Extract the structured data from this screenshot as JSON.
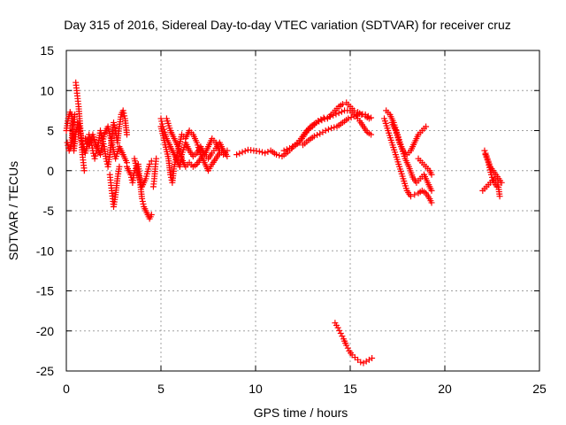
{
  "chart_data": {
    "type": "scatter",
    "title": "Day 315 of 2016, Sidereal Day-to-day VTEC variation (SDTVAR) for receiver cruz",
    "xlabel": "GPS time / hours",
    "ylabel": "SDTVAR / TECUs",
    "xlim": [
      0,
      25
    ],
    "ylim": [
      -25,
      15
    ],
    "xticks": [
      "0",
      "5",
      "10",
      "15",
      "20",
      "25"
    ],
    "yticks": [
      "15",
      "10",
      "5",
      "0",
      "-5",
      "-10",
      "-15",
      "-20",
      "-25"
    ],
    "grid": true,
    "marker": "+",
    "color": "#ff0000",
    "series": [
      {
        "name": "SDTVAR",
        "segments": [
          [
            [
              0.0,
              5.0
            ],
            [
              0.1,
              6.5
            ],
            [
              0.2,
              7.3
            ],
            [
              0.3,
              6.8
            ],
            [
              0.35,
              4.0
            ],
            [
              0.4,
              2.5
            ],
            [
              0.5,
              4.5
            ],
            [
              0.6,
              6.0
            ],
            [
              0.7,
              5.2
            ],
            [
              0.8,
              4.0
            ],
            [
              0.9,
              3.0
            ],
            [
              1.0,
              2.2
            ],
            [
              1.1,
              3.0
            ],
            [
              1.2,
              4.5
            ],
            [
              1.3,
              3.8
            ],
            [
              1.4,
              2.5
            ],
            [
              1.5,
              1.5
            ],
            [
              1.6,
              2.5
            ],
            [
              1.7,
              3.5
            ],
            [
              1.8,
              5.0
            ],
            [
              1.9,
              4.0
            ],
            [
              2.0,
              3.0
            ],
            [
              2.1,
              1.5
            ],
            [
              2.2,
              0.5
            ],
            [
              2.3,
              2.0
            ],
            [
              2.4,
              4.0
            ],
            [
              2.5,
              6.0
            ],
            [
              2.6,
              5.0
            ],
            [
              2.7,
              3.5
            ],
            [
              2.8,
              5.5
            ],
            [
              2.9,
              7.0
            ],
            [
              3.0,
              7.5
            ],
            [
              3.1,
              6.5
            ],
            [
              3.2,
              4.5
            ]
          ],
          [
            [
              0.05,
              3.5
            ],
            [
              0.15,
              2.5
            ],
            [
              0.25,
              3.0
            ],
            [
              0.35,
              5.5
            ],
            [
              0.45,
              7.0
            ]
          ],
          [
            [
              0.5,
              11.0
            ],
            [
              0.55,
              10.0
            ],
            [
              0.6,
              9.0
            ],
            [
              0.65,
              8.0
            ],
            [
              0.7,
              6.5
            ],
            [
              0.75,
              5.0
            ],
            [
              0.8,
              3.5
            ],
            [
              0.85,
              2.0
            ],
            [
              0.9,
              1.0
            ],
            [
              0.95,
              0.0
            ]
          ],
          [
            [
              1.0,
              4.0
            ],
            [
              1.2,
              3.2
            ],
            [
              1.4,
              4.5
            ],
            [
              1.6,
              3.0
            ],
            [
              1.8,
              2.0
            ],
            [
              2.0,
              4.5
            ],
            [
              2.2,
              5.5
            ],
            [
              2.4,
              3.5
            ],
            [
              2.6,
              1.5
            ],
            [
              2.8,
              3.0
            ],
            [
              3.0,
              2.0
            ],
            [
              3.2,
              1.0
            ]
          ],
          [
            [
              2.3,
              -0.5
            ],
            [
              2.35,
              -1.5
            ],
            [
              2.4,
              -2.5
            ],
            [
              2.45,
              -3.5
            ],
            [
              2.5,
              -4.5
            ],
            [
              2.6,
              -3.0
            ],
            [
              2.7,
              -1.0
            ],
            [
              2.8,
              0.5
            ]
          ],
          [
            [
              3.2,
              0.5
            ],
            [
              3.4,
              -0.5
            ],
            [
              3.5,
              -1.5
            ],
            [
              3.6,
              0.0
            ],
            [
              3.8,
              0.8
            ],
            [
              3.9,
              -1.5
            ],
            [
              4.0,
              -3.5
            ],
            [
              4.1,
              -4.5
            ],
            [
              4.2,
              -5.0
            ],
            [
              4.3,
              -5.5
            ],
            [
              4.4,
              -6.0
            ],
            [
              4.5,
              -5.5
            ]
          ],
          [
            [
              3.6,
              1.5
            ],
            [
              3.8,
              -0.5
            ],
            [
              4.0,
              -2.0
            ],
            [
              4.2,
              -1.0
            ],
            [
              4.4,
              0.8
            ],
            [
              4.5,
              1.2
            ]
          ],
          [
            [
              4.6,
              -2.0
            ],
            [
              4.65,
              -1.0
            ],
            [
              4.7,
              0.5
            ],
            [
              4.75,
              1.5
            ]
          ],
          [
            [
              5.0,
              6.5
            ],
            [
              5.1,
              5.5
            ],
            [
              5.2,
              4.8
            ],
            [
              5.3,
              4.0
            ],
            [
              5.5,
              3.0
            ],
            [
              5.7,
              2.0
            ],
            [
              5.9,
              1.0
            ],
            [
              6.0,
              0.5
            ],
            [
              6.1,
              2.0
            ],
            [
              6.3,
              3.5
            ],
            [
              6.5,
              2.5
            ],
            [
              6.7,
              1.8
            ],
            [
              6.9,
              2.2
            ],
            [
              7.1,
              3.0
            ],
            [
              7.3,
              2.0
            ],
            [
              7.5,
              1.5
            ],
            [
              7.7,
              2.2
            ],
            [
              7.9,
              2.8
            ],
            [
              8.1,
              3.5
            ],
            [
              8.3,
              2.5
            ],
            [
              8.5,
              1.8
            ]
          ],
          [
            [
              5.0,
              5.5
            ],
            [
              5.2,
              3.5
            ],
            [
              5.4,
              1.5
            ],
            [
              5.5,
              -0.5
            ],
            [
              5.6,
              -1.5
            ],
            [
              5.7,
              0.5
            ],
            [
              5.9,
              2.5
            ],
            [
              6.1,
              4.5
            ],
            [
              6.3,
              4.0
            ],
            [
              6.5,
              5.0
            ],
            [
              6.7,
              4.5
            ],
            [
              6.9,
              3.5
            ],
            [
              7.1,
              2.0
            ],
            [
              7.3,
              1.0
            ],
            [
              7.5,
              0.0
            ],
            [
              7.7,
              0.8
            ],
            [
              7.9,
              1.5
            ],
            [
              8.1,
              2.2
            ]
          ],
          [
            [
              5.3,
              6.5
            ],
            [
              5.5,
              5.0
            ],
            [
              5.7,
              4.0
            ],
            [
              5.9,
              3.0
            ],
            [
              6.1,
              1.5
            ],
            [
              6.3,
              0.5
            ],
            [
              6.5,
              1.0
            ],
            [
              6.7,
              0.5
            ],
            [
              6.9,
              0.8
            ],
            [
              7.1,
              1.5
            ],
            [
              7.3,
              2.0
            ],
            [
              7.5,
              3.0
            ],
            [
              7.7,
              4.0
            ],
            [
              7.9,
              3.5
            ],
            [
              8.1,
              2.5
            ],
            [
              8.3,
              2.0
            ],
            [
              8.5,
              2.5
            ]
          ],
          [
            [
              9.0,
              2.0
            ],
            [
              9.3,
              2.3
            ],
            [
              9.6,
              2.6
            ],
            [
              9.9,
              2.5
            ],
            [
              10.2,
              2.4
            ],
            [
              10.5,
              2.2
            ],
            [
              10.8,
              2.5
            ],
            [
              11.1,
              2.0
            ],
            [
              11.4,
              1.8
            ],
            [
              11.7,
              2.3
            ],
            [
              12.0,
              3.0
            ],
            [
              12.3,
              3.5
            ],
            [
              12.6,
              4.5
            ],
            [
              12.9,
              5.5
            ],
            [
              13.2,
              6.0
            ],
            [
              13.5,
              6.3
            ],
            [
              13.8,
              6.6
            ],
            [
              14.1,
              6.9
            ],
            [
              14.4,
              7.2
            ],
            [
              14.7,
              7.5
            ],
            [
              15.0,
              7.5
            ],
            [
              15.3,
              6.8
            ],
            [
              15.5,
              6.2
            ],
            [
              15.7,
              5.5
            ],
            [
              15.9,
              4.8
            ],
            [
              16.1,
              4.5
            ]
          ],
          [
            [
              11.5,
              2.5
            ],
            [
              11.8,
              2.8
            ],
            [
              12.1,
              3.2
            ],
            [
              12.4,
              4.0
            ],
            [
              12.7,
              5.0
            ],
            [
              13.0,
              5.5
            ],
            [
              13.3,
              6.2
            ],
            [
              13.6,
              6.6
            ],
            [
              13.8,
              6.5
            ],
            [
              14.0,
              7.0
            ],
            [
              14.2,
              7.5
            ],
            [
              14.4,
              8.0
            ],
            [
              14.6,
              8.3
            ],
            [
              14.8,
              8.5
            ],
            [
              15.0,
              8.0
            ],
            [
              15.2,
              7.5
            ],
            [
              15.4,
              7.3
            ],
            [
              15.6,
              7.0
            ],
            [
              15.8,
              6.8
            ],
            [
              16.0,
              6.5
            ]
          ],
          [
            [
              12.5,
              3.2
            ],
            [
              12.8,
              3.8
            ],
            [
              13.1,
              4.3
            ],
            [
              13.4,
              4.6
            ],
            [
              13.7,
              5.0
            ],
            [
              14.0,
              5.3
            ],
            [
              14.3,
              5.5
            ],
            [
              14.6,
              6.0
            ],
            [
              14.9,
              6.5
            ],
            [
              15.2,
              6.8
            ],
            [
              15.5,
              7.1
            ],
            [
              15.8,
              7.0
            ],
            [
              16.1,
              6.6
            ]
          ],
          [
            [
              14.2,
              -19.0
            ],
            [
              14.35,
              -19.6
            ],
            [
              14.5,
              -20.3
            ],
            [
              14.65,
              -21.0
            ],
            [
              14.8,
              -21.8
            ],
            [
              14.95,
              -22.5
            ],
            [
              15.1,
              -23.0
            ],
            [
              15.25,
              -23.3
            ],
            [
              15.4,
              -23.6
            ],
            [
              15.55,
              -23.9
            ],
            [
              15.7,
              -24.0
            ],
            [
              15.85,
              -23.8
            ],
            [
              16.0,
              -23.6
            ],
            [
              16.15,
              -23.4
            ]
          ],
          [
            [
              16.8,
              6.5
            ],
            [
              17.0,
              5.0
            ],
            [
              17.2,
              3.5
            ],
            [
              17.4,
              2.0
            ],
            [
              17.6,
              0.5
            ],
            [
              17.8,
              -1.0
            ],
            [
              18.0,
              -2.5
            ],
            [
              18.2,
              -3.2
            ],
            [
              18.4,
              -3.0
            ],
            [
              18.6,
              -2.8
            ],
            [
              18.8,
              -2.5
            ],
            [
              19.0,
              -2.8
            ],
            [
              19.2,
              -3.5
            ],
            [
              19.3,
              -4.0
            ]
          ],
          [
            [
              16.9,
              7.5
            ],
            [
              17.1,
              7.0
            ],
            [
              17.3,
              6.0
            ],
            [
              17.5,
              4.5
            ],
            [
              17.7,
              3.0
            ],
            [
              17.9,
              1.5
            ],
            [
              18.1,
              0.5
            ],
            [
              18.3,
              -0.8
            ],
            [
              18.5,
              -1.5
            ],
            [
              18.7,
              -1.0
            ],
            [
              18.9,
              -0.5
            ],
            [
              19.1,
              -1.5
            ],
            [
              19.3,
              -2.5
            ]
          ],
          [
            [
              17.2,
              6.0
            ],
            [
              17.4,
              5.0
            ],
            [
              17.6,
              3.5
            ],
            [
              17.8,
              2.5
            ],
            [
              18.0,
              2.0
            ],
            [
              18.2,
              2.5
            ],
            [
              18.4,
              3.5
            ],
            [
              18.6,
              4.5
            ],
            [
              18.8,
              5.0
            ],
            [
              19.0,
              5.5
            ]
          ],
          [
            [
              18.6,
              1.5
            ],
            [
              18.8,
              1.0
            ],
            [
              19.0,
              0.5
            ],
            [
              19.2,
              0.0
            ],
            [
              19.3,
              -0.5
            ]
          ],
          [
            [
              22.1,
              2.5
            ],
            [
              22.25,
              1.5
            ],
            [
              22.4,
              0.5
            ],
            [
              22.55,
              0.0
            ],
            [
              22.7,
              -0.5
            ],
            [
              22.85,
              -1.0
            ],
            [
              23.0,
              -1.5
            ]
          ],
          [
            [
              22.0,
              -2.5
            ],
            [
              22.2,
              -2.0
            ],
            [
              22.4,
              -1.5
            ],
            [
              22.6,
              -1.0
            ],
            [
              22.8,
              -1.5
            ],
            [
              22.9,
              -3.2
            ]
          ],
          [
            [
              22.15,
              2.0
            ],
            [
              22.3,
              1.0
            ],
            [
              22.45,
              -0.5
            ],
            [
              22.6,
              -1.5
            ],
            [
              22.75,
              -2.0
            ]
          ]
        ]
      }
    ]
  }
}
